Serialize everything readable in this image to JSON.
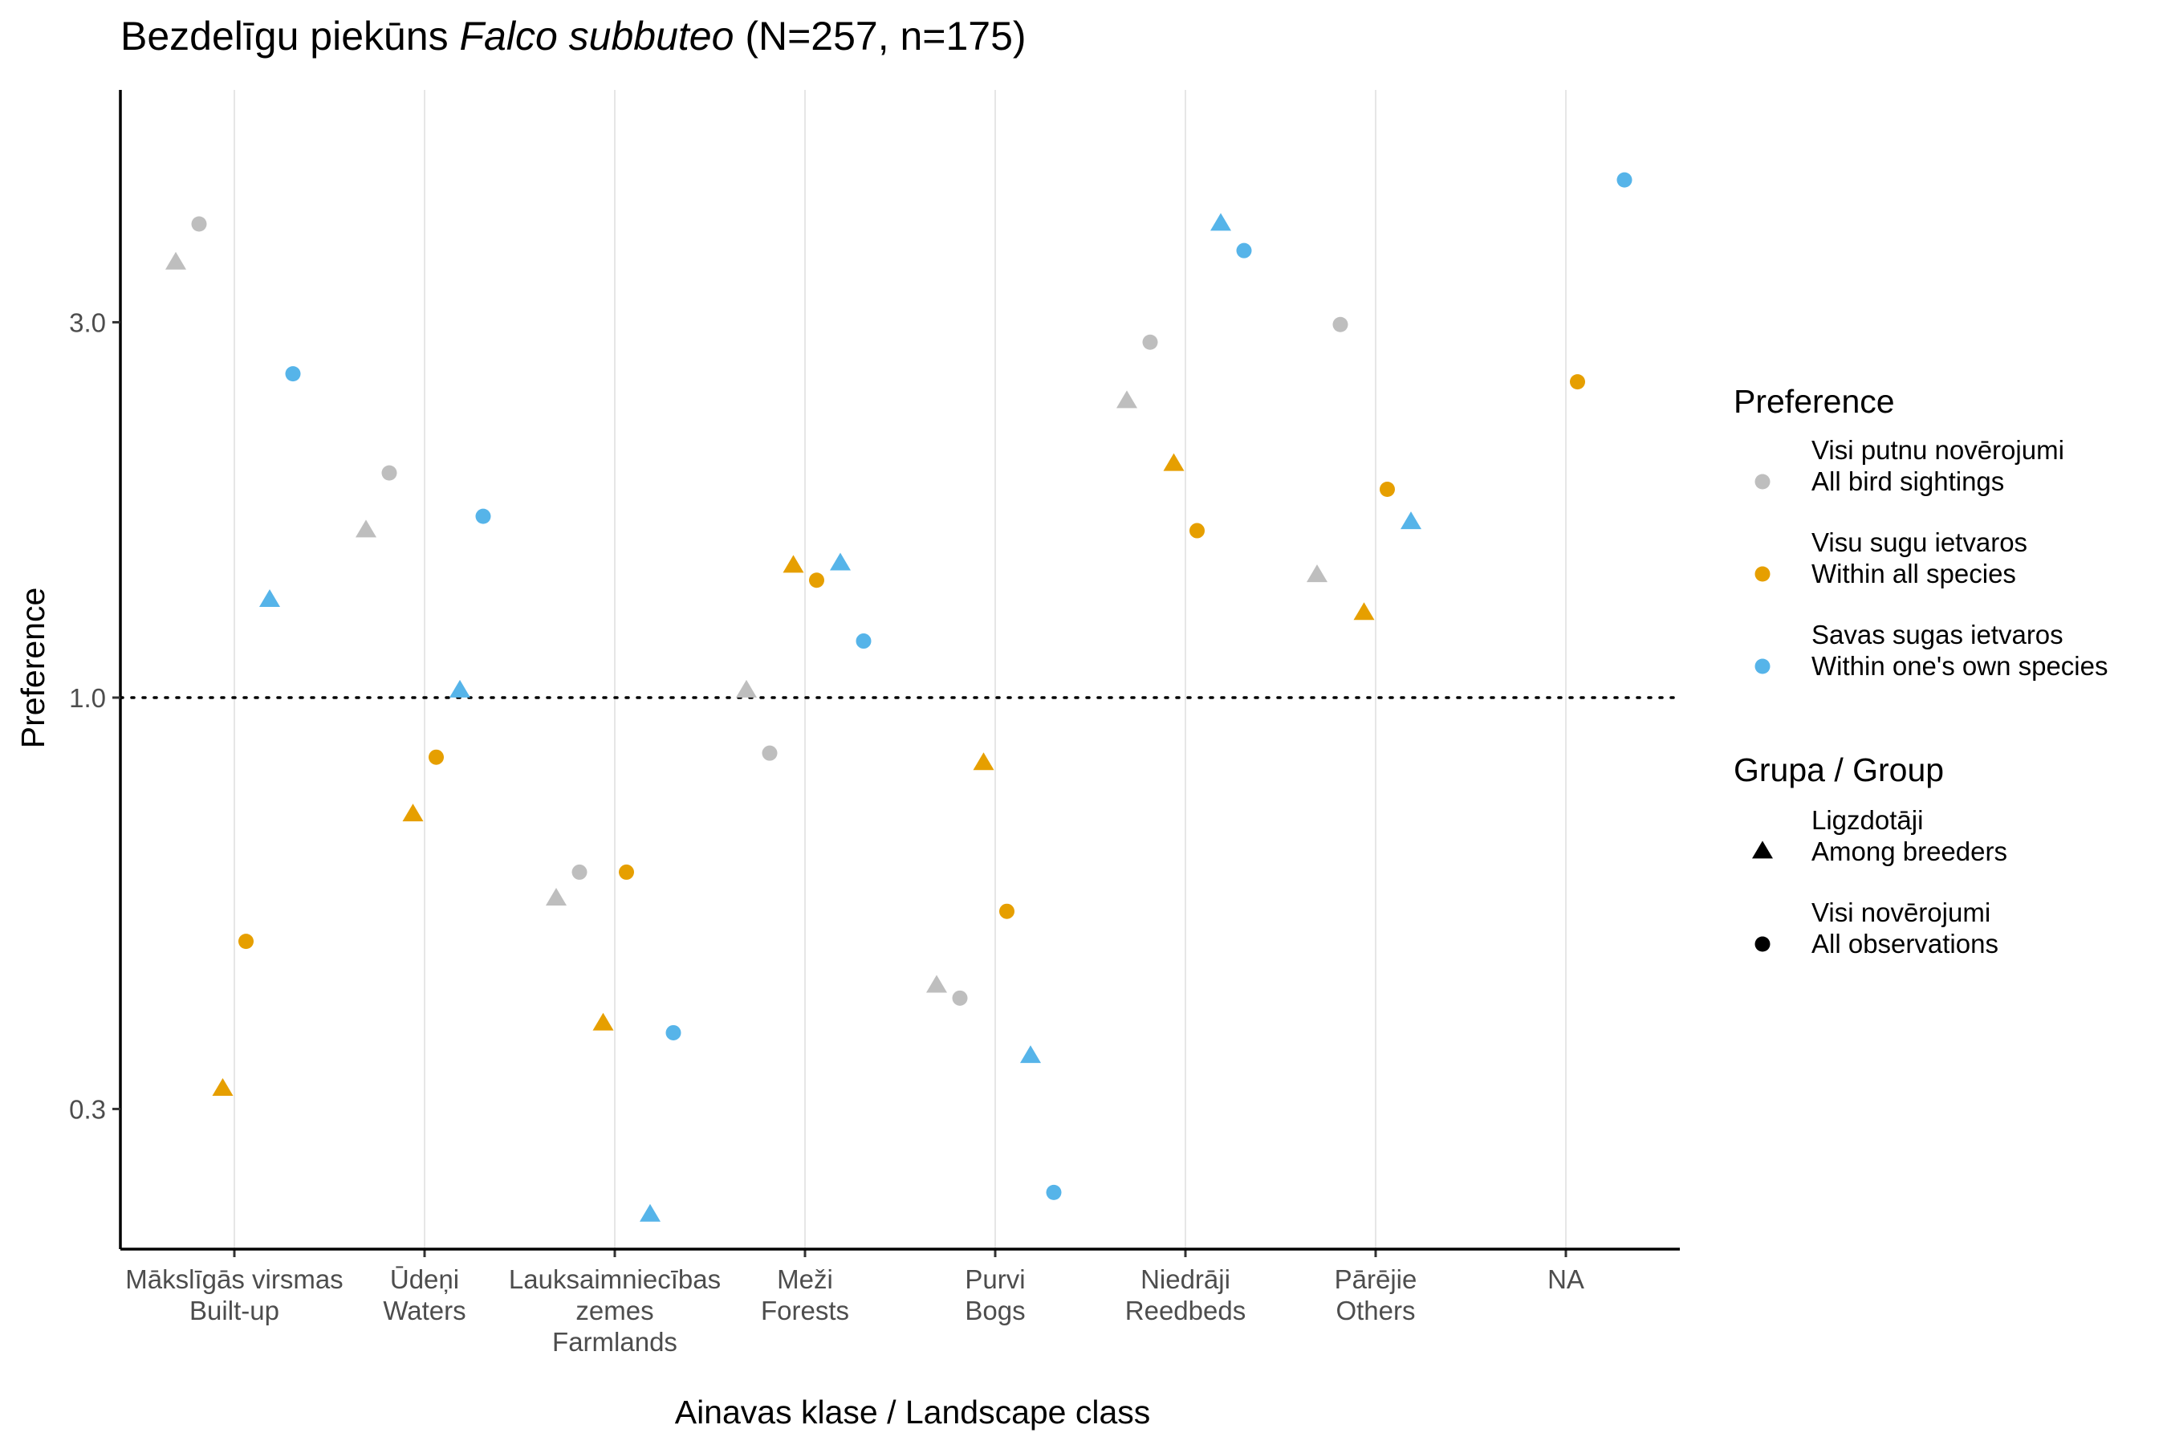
{
  "chart_data": {
    "type": "scatter",
    "title": {
      "prefix": "Bezdelīgu piekūns ",
      "species": "Falco subbuteo",
      "suffix": " (N=257, n=175)"
    },
    "xlabel": "Ainavas klase / Landscape class",
    "ylabel": "Preference",
    "y_scale": "log",
    "ylim": [
      0.18,
      5.2
    ],
    "y_ticks": [
      {
        "value": 0.3,
        "label": "0.3"
      },
      {
        "value": 1.0,
        "label": "1.0"
      },
      {
        "value": 3.0,
        "label": "3.0"
      }
    ],
    "reference_line": {
      "value": 1.0,
      "style": "dotted"
    },
    "grid": "vertical major lines",
    "categories": [
      {
        "key": "builtup",
        "lines": [
          "Mākslīgās virsmas",
          "Built-up"
        ]
      },
      {
        "key": "waters",
        "lines": [
          "Ūdeņi",
          "Waters"
        ]
      },
      {
        "key": "farmlands",
        "lines": [
          "Lauksaimniecības",
          "zemes",
          "Farmlands"
        ]
      },
      {
        "key": "forests",
        "lines": [
          "Meži",
          "Forests"
        ]
      },
      {
        "key": "bogs",
        "lines": [
          "Purvi",
          "Bogs"
        ]
      },
      {
        "key": "reedbeds",
        "lines": [
          "Niedrāji",
          "Reedbeds"
        ]
      },
      {
        "key": "others",
        "lines": [
          "Pārējie",
          "Others"
        ]
      },
      {
        "key": "na",
        "lines": [
          "NA"
        ]
      }
    ],
    "preference_legend": {
      "title": "Preference",
      "items": [
        {
          "key": "all_birds",
          "color": "#BEBEBE",
          "lines": [
            "Visi putnu novērojumi",
            "All bird sightings"
          ]
        },
        {
          "key": "all_species",
          "color": "#E69F00",
          "lines": [
            "Visu sugu ietvaros",
            "Within all species"
          ]
        },
        {
          "key": "own_species",
          "color": "#56B4E9",
          "lines": [
            "Savas sugas ietvaros",
            "Within one's own species"
          ]
        }
      ]
    },
    "group_legend": {
      "title": "Grupa / Group",
      "items": [
        {
          "key": "breeders",
          "shape": "triangle",
          "lines": [
            "Ligzdotāji",
            "Among breeders"
          ]
        },
        {
          "key": "all_obs",
          "shape": "circle",
          "lines": [
            "Visi novērojumi",
            "All observations"
          ]
        }
      ]
    },
    "series": [
      {
        "preference": "all_birds",
        "group": "breeders",
        "values": [
          3.57,
          1.63,
          0.555,
          1.02,
          0.43,
          2.38,
          1.43,
          null
        ]
      },
      {
        "preference": "all_birds",
        "group": "all_obs",
        "values": [
          4.0,
          1.93,
          0.6,
          0.85,
          0.415,
          2.83,
          2.98,
          null
        ]
      },
      {
        "preference": "all_species",
        "group": "breeders",
        "values": [
          0.318,
          0.71,
          0.385,
          1.47,
          0.825,
          1.98,
          1.28,
          null
        ]
      },
      {
        "preference": "all_species",
        "group": "all_obs",
        "values": [
          0.49,
          0.84,
          0.6,
          1.41,
          0.535,
          1.63,
          1.84,
          2.52
        ]
      },
      {
        "preference": "own_species",
        "group": "breeders",
        "values": [
          1.33,
          1.02,
          0.22,
          1.48,
          0.35,
          4.0,
          1.67,
          null
        ]
      },
      {
        "preference": "own_species",
        "group": "all_obs",
        "values": [
          2.58,
          1.7,
          0.375,
          1.18,
          0.235,
          3.7,
          null,
          4.55
        ]
      }
    ]
  }
}
